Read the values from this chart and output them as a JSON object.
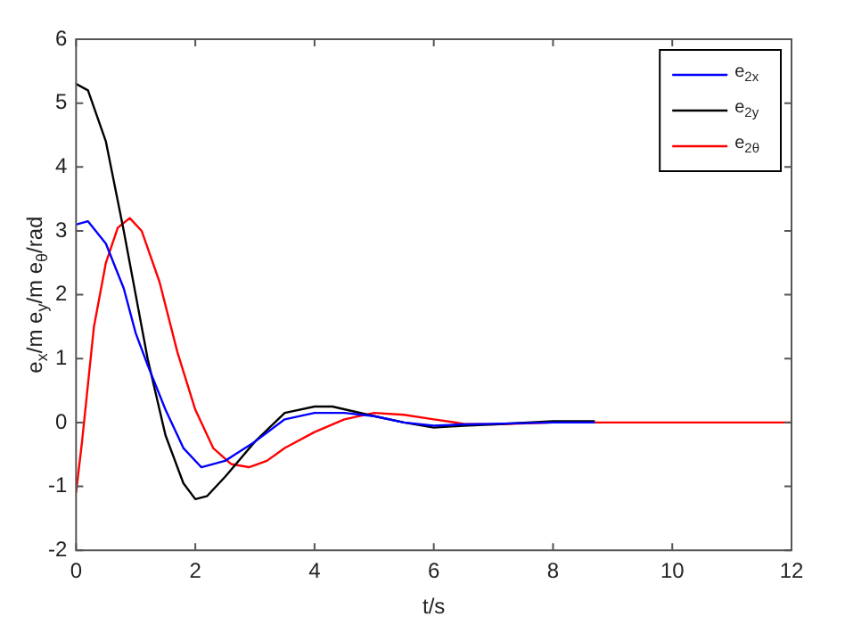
{
  "chart_data": {
    "type": "line",
    "xlabel": "t/s",
    "ylabel": "e$_{x}$/m e$_{y}$/m e$_{θ}$/rad",
    "xlim": [
      0,
      12
    ],
    "xticks": [
      0,
      2,
      4,
      6,
      8,
      10,
      12
    ],
    "ylim": [
      -2,
      6
    ],
    "yticks": [
      -2,
      -1,
      0,
      1,
      2,
      3,
      4,
      5,
      6
    ],
    "grid": false,
    "legend": "top right",
    "marker": "none",
    "line_style": "solid",
    "series": [
      {
        "name": "e$_{2x}$",
        "color": "#0000ff",
        "x": [
          0,
          0.2,
          0.5,
          0.8,
          1.0,
          1.2,
          1.5,
          1.8,
          2.1,
          2.5,
          3.0,
          3.5,
          4.0,
          4.5,
          5.0,
          5.5,
          6.0,
          6.5,
          7.0,
          8.0,
          8.7
        ],
        "values": [
          3.1,
          3.15,
          2.8,
          2.1,
          1.4,
          0.9,
          0.2,
          -0.4,
          -0.7,
          -0.6,
          -0.3,
          0.05,
          0.15,
          0.15,
          0.1,
          0,
          -0.05,
          -0.03,
          -0.02,
          0,
          0
        ]
      },
      {
        "name": "e$_{2y}$",
        "color": "#000000",
        "x": [
          0,
          0.2,
          0.5,
          0.8,
          1.0,
          1.2,
          1.5,
          1.8,
          2.0,
          2.2,
          2.5,
          3.0,
          3.5,
          4.0,
          4.3,
          5.0,
          5.5,
          6.0,
          6.5,
          7.0,
          8.0,
          8.7
        ],
        "values": [
          5.3,
          5.2,
          4.4,
          3.0,
          2.0,
          1.0,
          -0.2,
          -0.95,
          -1.2,
          -1.15,
          -0.85,
          -0.3,
          0.15,
          0.25,
          0.25,
          0.1,
          0,
          -0.08,
          -0.05,
          -0.03,
          0.02,
          0.02
        ]
      },
      {
        "name": "e$_{2θ}$",
        "color": "#ff0000",
        "x": [
          0,
          0.1,
          0.3,
          0.5,
          0.7,
          0.9,
          1.1,
          1.4,
          1.7,
          2.0,
          2.3,
          2.6,
          2.9,
          3.2,
          3.5,
          4.0,
          4.5,
          5.0,
          5.5,
          6.0,
          6.5,
          7.0,
          8.0,
          9.0,
          12.0
        ],
        "values": [
          -1.1,
          -0.3,
          1.5,
          2.5,
          3.05,
          3.2,
          3.0,
          2.2,
          1.1,
          0.2,
          -0.4,
          -0.65,
          -0.7,
          -0.6,
          -0.4,
          -0.15,
          0.05,
          0.15,
          0.12,
          0.05,
          -0.02,
          -0.03,
          0,
          0,
          0
        ]
      }
    ]
  }
}
